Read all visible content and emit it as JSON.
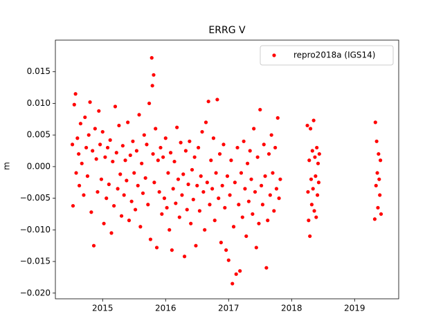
{
  "chart_data": {
    "type": "scatter",
    "title": "ERRG V",
    "ylabel": "m",
    "x": [
      2014.52,
      2014.53,
      2014.55,
      2014.57,
      2014.58,
      2014.6,
      2014.62,
      2014.63,
      2014.65,
      2014.67,
      2014.7,
      2014.72,
      2014.74,
      2014.76,
      2014.78,
      2014.8,
      2014.82,
      2014.84,
      2014.86,
      2014.88,
      2014.9,
      2014.92,
      2014.94,
      2014.96,
      2014.98,
      2015.0,
      2015.02,
      2015.04,
      2015.06,
      2015.08,
      2015.1,
      2015.12,
      2015.14,
      2015.16,
      2015.18,
      2015.2,
      2015.22,
      2015.24,
      2015.26,
      2015.28,
      2015.3,
      2015.32,
      2015.34,
      2015.36,
      2015.38,
      2015.4,
      2015.42,
      2015.44,
      2015.46,
      2015.48,
      2015.5,
      2015.52,
      2015.54,
      2015.56,
      2015.58,
      2015.6,
      2015.62,
      2015.64,
      2015.66,
      2015.68,
      2015.7,
      2015.72,
      2015.74,
      2015.76,
      2015.78,
      2015.79,
      2015.8,
      2015.81,
      2015.82,
      2015.84,
      2015.86,
      2015.88,
      2015.9,
      2015.92,
      2015.94,
      2015.96,
      2015.98,
      2016.0,
      2016.02,
      2016.04,
      2016.06,
      2016.08,
      2016.1,
      2016.12,
      2016.14,
      2016.16,
      2016.18,
      2016.2,
      2016.22,
      2016.24,
      2016.26,
      2016.28,
      2016.3,
      2016.32,
      2016.34,
      2016.36,
      2016.38,
      2016.4,
      2016.42,
      2016.44,
      2016.46,
      2016.48,
      2016.5,
      2016.52,
      2016.54,
      2016.56,
      2016.58,
      2016.6,
      2016.62,
      2016.64,
      2016.66,
      2016.68,
      2016.7,
      2016.72,
      2016.74,
      2016.76,
      2016.78,
      2016.8,
      2016.82,
      2016.84,
      2016.86,
      2016.88,
      2016.9,
      2016.92,
      2016.94,
      2016.96,
      2016.98,
      2017.0,
      2017.02,
      2017.04,
      2017.06,
      2017.08,
      2017.1,
      2017.12,
      2017.14,
      2017.16,
      2017.18,
      2017.2,
      2017.22,
      2017.24,
      2017.26,
      2017.28,
      2017.3,
      2017.32,
      2017.34,
      2017.36,
      2017.38,
      2017.4,
      2017.42,
      2017.44,
      2017.46,
      2017.48,
      2017.5,
      2017.52,
      2017.54,
      2017.56,
      2017.58,
      2017.6,
      2017.62,
      2017.64,
      2017.66,
      2017.68,
      2017.7,
      2017.72,
      2017.74,
      2017.76,
      2017.78,
      2017.8,
      2017.82,
      2018.25,
      2018.26,
      2018.27,
      2018.28,
      2018.29,
      2018.3,
      2018.31,
      2018.32,
      2018.33,
      2018.34,
      2018.35,
      2018.36,
      2018.37,
      2018.38,
      2018.39,
      2018.4,
      2018.41,
      2018.42,
      2018.43,
      2018.44,
      2019.32,
      2019.33,
      2019.34,
      2019.35,
      2019.36,
      2019.37,
      2019.38,
      2019.39,
      2019.4,
      2019.41,
      2019.42
    ],
    "series": [
      {
        "name": "repro2018a (IGS14)",
        "color": "#ff0000",
        "values": [
          0.0035,
          -0.0062,
          0.0098,
          0.0115,
          -0.001,
          0.0045,
          0.002,
          -0.003,
          0.0068,
          0.0005,
          -0.0045,
          0.0078,
          0.003,
          -0.0015,
          0.005,
          0.0102,
          -0.0072,
          0.0025,
          -0.0125,
          0.006,
          0.0012,
          -0.004,
          0.0088,
          0.0035,
          -0.002,
          0.0055,
          -0.009,
          0.0015,
          -0.005,
          0.003,
          -0.0028,
          0.0042,
          -0.0105,
          0.0008,
          -0.0062,
          0.0095,
          0.0022,
          -0.0035,
          0.0065,
          -0.0012,
          -0.0078,
          0.0033,
          -0.0045,
          0.001,
          -0.0022,
          0.007,
          -0.0085,
          0.0018,
          -0.0055,
          0.004,
          -0.001,
          -0.0068,
          0.0025,
          -0.003,
          0.0082,
          -0.0095,
          0.0005,
          -0.0042,
          0.005,
          -0.0018,
          0.0035,
          -0.006,
          0.01,
          -0.0115,
          0.0172,
          0.0128,
          0.002,
          0.0145,
          -0.0025,
          0.006,
          -0.0128,
          0.001,
          -0.004,
          0.003,
          -0.0075,
          0.0015,
          -0.005,
          0.0045,
          -0.0065,
          -0.001,
          -0.01,
          0.0022,
          -0.0132,
          -0.0035,
          0.0008,
          -0.0058,
          0.0062,
          -0.002,
          -0.008,
          0.0038,
          -0.0045,
          -0.0012,
          -0.0142,
          0.0025,
          -0.0068,
          -0.0028,
          0.004,
          -0.009,
          -0.0005,
          -0.0052,
          0.0015,
          -0.0125,
          -0.003,
          0.003,
          -0.007,
          -0.0015,
          0.0055,
          -0.004,
          -0.01,
          0.007,
          -0.0025,
          0.0103,
          -0.006,
          0.001,
          -0.0035,
          0.0045,
          -0.0085,
          -0.001,
          0.0106,
          -0.005,
          0.002,
          -0.012,
          -0.003,
          0.0035,
          -0.0065,
          -0.0132,
          -0.0015,
          -0.0148,
          -0.0045,
          0.001,
          -0.0185,
          -0.0095,
          -0.0025,
          -0.017,
          0.003,
          -0.006,
          -0.0165,
          -0.001,
          -0.008,
          0.004,
          -0.0035,
          -0.011,
          0.0005,
          -0.0055,
          0.0025,
          -0.002,
          -0.0075,
          0.006,
          -0.004,
          -0.0128,
          0.0015,
          -0.009,
          0.009,
          -0.003,
          -0.006,
          0.0035,
          -0.0015,
          -0.016,
          -0.0085,
          0.002,
          -0.0045,
          0.005,
          -0.001,
          -0.007,
          0.003,
          -0.0035,
          0.0077,
          -0.005,
          -0.002,
          0.0065,
          -0.004,
          -0.0085,
          0.001,
          -0.011,
          0.006,
          -0.002,
          -0.006,
          0.0025,
          -0.0035,
          0.0073,
          -0.007,
          0.0015,
          -0.0015,
          -0.008,
          0.003,
          -0.0045,
          0.0005,
          -0.0025,
          0.002,
          -0.0083,
          0.007,
          -0.003,
          0.004,
          -0.001,
          -0.0065,
          0.002,
          -0.002,
          -0.0045,
          0.001,
          -0.0075
        ]
      }
    ],
    "xlim": [
      2014.25,
      2019.7
    ],
    "ylim": [
      -0.0209,
      0.02
    ],
    "xticks": [
      2015,
      2016,
      2017,
      2018,
      2019
    ],
    "yticks": [
      {
        "value": -0.02,
        "label": "−0.020"
      },
      {
        "value": -0.015,
        "label": "−0.015"
      },
      {
        "value": -0.01,
        "label": "−0.010"
      },
      {
        "value": -0.005,
        "label": "−0.005"
      },
      {
        "value": 0,
        "label": "0.000"
      },
      {
        "value": 0.005,
        "label": "0.005"
      },
      {
        "value": 0.01,
        "label": "0.010"
      },
      {
        "value": 0.015,
        "label": "0.015"
      }
    ],
    "legend": "upper right",
    "grid": false
  }
}
